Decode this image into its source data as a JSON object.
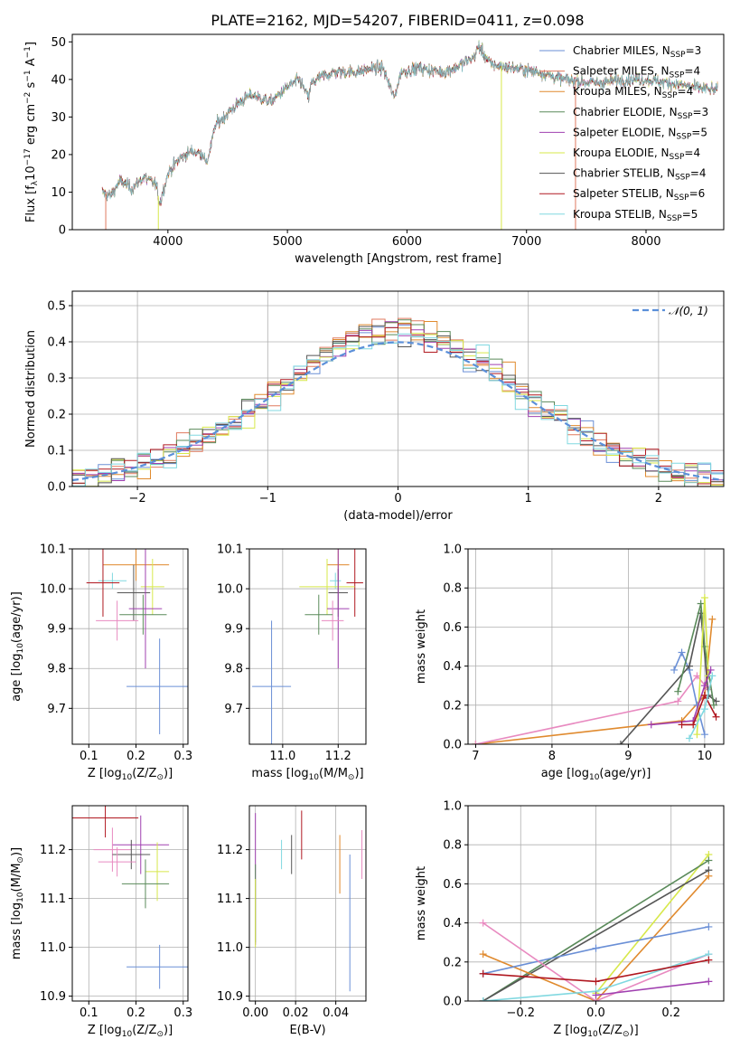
{
  "colors": {
    "chabrier_miles": "#6a8fd6",
    "salpeter_miles": "#e07a5f",
    "kroupa_miles": "#e08a2e",
    "chabrier_elodie": "#5a8a5a",
    "salpeter_elodie": "#a040b0",
    "kroupa_elodie": "#d7e84a",
    "chabrier_stelib": "#555555",
    "salpeter_stelib": "#b01820",
    "kroupa_stelib": "#80d8e0",
    "normal": "#5b8fd9",
    "pink": "#e88ac0"
  },
  "chart_data": [
    {
      "id": "spectrum",
      "type": "line",
      "title": "PLATE=2162, MJD=54207, FIBERID=0411, z=0.098",
      "xlabel": "wavelength [Angstrom, rest frame]",
      "ylabel_parts": [
        "Flux [f",
        "λ",
        "10",
        "−17",
        " erg cm",
        "−2",
        " s",
        "−1",
        " A",
        "−1",
        "]"
      ],
      "xlim": [
        3200,
        8650
      ],
      "ylim": [
        0,
        52
      ],
      "xticks": [
        4000,
        5000,
        6000,
        7000,
        8000
      ],
      "yticks": [
        0,
        10,
        20,
        30,
        40,
        50
      ],
      "grid": false,
      "legend_position": "right",
      "spectrum_anchors": [
        [
          3450,
          10
        ],
        [
          3520,
          9
        ],
        [
          3600,
          13
        ],
        [
          3700,
          11
        ],
        [
          3800,
          14
        ],
        [
          3900,
          12
        ],
        [
          3933,
          7
        ],
        [
          4000,
          15
        ],
        [
          4100,
          19
        ],
        [
          4200,
          21
        ],
        [
          4300,
          20
        ],
        [
          4320,
          17
        ],
        [
          4400,
          28
        ],
        [
          4500,
          31
        ],
        [
          4600,
          34
        ],
        [
          4700,
          36
        ],
        [
          4861,
          34
        ],
        [
          5000,
          38
        ],
        [
          5100,
          40
        ],
        [
          5175,
          35
        ],
        [
          5200,
          39
        ],
        [
          5300,
          41
        ],
        [
          5400,
          42
        ],
        [
          5500,
          42
        ],
        [
          5600,
          42
        ],
        [
          5700,
          43
        ],
        [
          5800,
          43
        ],
        [
          5893,
          35
        ],
        [
          5950,
          42
        ],
        [
          6100,
          43
        ],
        [
          6300,
          42
        ],
        [
          6400,
          43
        ],
        [
          6563,
          46
        ],
        [
          6600,
          49
        ],
        [
          6700,
          44
        ],
        [
          6900,
          43
        ],
        [
          7100,
          42
        ],
        [
          7300,
          40
        ],
        [
          7600,
          39
        ],
        [
          7800,
          40
        ],
        [
          8000,
          40
        ],
        [
          8200,
          39
        ],
        [
          8600,
          37
        ]
      ],
      "drops": [
        {
          "x": 3920,
          "series": "kroupa_elodie"
        },
        {
          "x": 3480,
          "series": "salpeter_miles"
        },
        {
          "x": 6790,
          "series": "kroupa_elodie"
        },
        {
          "x": 7410,
          "series": "salpeter_miles"
        }
      ],
      "legend": [
        {
          "base": "Chabrier MILES, N",
          "sub": "SSP",
          "tail": "=3",
          "color": "chabrier_miles"
        },
        {
          "base": "Salpeter MILES, N",
          "sub": "SSP",
          "tail": "=4",
          "color": "salpeter_miles"
        },
        {
          "base": "Kroupa MILES, N",
          "sub": "SSP",
          "tail": "=4",
          "color": "kroupa_miles"
        },
        {
          "base": "Chabrier ELODIE, N",
          "sub": "SSP",
          "tail": "=3",
          "color": "chabrier_elodie"
        },
        {
          "base": "Salpeter ELODIE, N",
          "sub": "SSP",
          "tail": "=5",
          "color": "salpeter_elodie"
        },
        {
          "base": "Kroupa ELODIE, N",
          "sub": "SSP",
          "tail": "=4",
          "color": "kroupa_elodie"
        },
        {
          "base": "Chabrier STELIB, N",
          "sub": "SSP",
          "tail": "=4",
          "color": "chabrier_stelib"
        },
        {
          "base": "Salpeter STELIB, N",
          "sub": "SSP",
          "tail": "=6",
          "color": "salpeter_stelib"
        },
        {
          "base": "Kroupa STELIB, N",
          "sub": "SSP",
          "tail": "=5",
          "color": "kroupa_stelib"
        }
      ]
    },
    {
      "id": "residuals",
      "type": "histogram",
      "xlabel": "(data-model)/error",
      "ylabel": "Normed distribution",
      "xlim": [
        -2.5,
        2.5
      ],
      "ylim": [
        0,
        0.54
      ],
      "xticks": [
        -2,
        -1,
        0,
        1,
        2
      ],
      "yticks": [
        0.0,
        0.1,
        0.2,
        0.3,
        0.4,
        0.5
      ],
      "grid": true,
      "bin_width": 0.1,
      "legend_position": "top-right",
      "legend_label": "𝒩(0, 1)",
      "normal_color": "normal"
    },
    {
      "id": "age_vs_Z",
      "type": "scatter",
      "xlabel_parts": [
        "Z [log",
        "10",
        "(Z/Z",
        "⊙",
        ")]"
      ],
      "ylabel_parts": [
        "age  [log",
        "10",
        "(age/yr)]"
      ],
      "xlim": [
        0.065,
        0.31
      ],
      "ylim": [
        9.61,
        10.1
      ],
      "xticks": [
        0.1,
        0.2,
        0.3
      ],
      "yticks": [
        9.7,
        9.8,
        9.9,
        10.0,
        10.1
      ],
      "grid": true,
      "points": [
        {
          "x": 0.15,
          "y": 10.02,
          "xerr": 0.03,
          "yerr": 0.02,
          "color": "kroupa_stelib"
        },
        {
          "x": 0.2,
          "y": 10.06,
          "xerr": 0.07,
          "yerr": 0.04,
          "color": "kroupa_miles"
        },
        {
          "x": 0.13,
          "y": 10.015,
          "xerr": 0.035,
          "yerr": 0.085,
          "color": "salpeter_stelib"
        },
        {
          "x": 0.235,
          "y": 10.005,
          "xerr": 0.025,
          "yerr": 0.07,
          "color": "kroupa_elodie"
        },
        {
          "x": 0.195,
          "y": 9.99,
          "xerr": 0.035,
          "yerr": 0.07,
          "color": "chabrier_stelib"
        },
        {
          "x": 0.22,
          "y": 9.95,
          "xerr": 0.035,
          "yerr": 0.15,
          "color": "salpeter_elodie"
        },
        {
          "x": 0.16,
          "y": 9.92,
          "xerr": 0.045,
          "yerr": 0.05,
          "color": "pink"
        },
        {
          "x": 0.215,
          "y": 9.935,
          "xerr": 0.05,
          "yerr": 0.05,
          "color": "chabrier_elodie"
        },
        {
          "x": 0.25,
          "y": 9.755,
          "xerr": 0.07,
          "yerr": 0.12,
          "color": "chabrier_miles"
        }
      ]
    },
    {
      "id": "age_vs_mass",
      "type": "scatter",
      "xlabel_parts": [
        "mass [log",
        "10",
        "(M/M",
        "⊙",
        ")]"
      ],
      "xlim": [
        10.88,
        11.3
      ],
      "ylim": [
        9.61,
        10.1
      ],
      "xticks": [
        11.0,
        11.2
      ],
      "yticks": [
        9.7,
        9.8,
        9.9,
        10.0,
        10.1
      ],
      "grid": true,
      "points": [
        {
          "x": 11.2,
          "y": 10.06,
          "xerr": 0.04,
          "yerr": 0.04,
          "color": "kroupa_miles"
        },
        {
          "x": 11.19,
          "y": 10.02,
          "xerr": 0.02,
          "yerr": 0.02,
          "color": "kroupa_stelib"
        },
        {
          "x": 11.26,
          "y": 10.015,
          "xerr": 0.03,
          "yerr": 0.085,
          "color": "salpeter_stelib"
        },
        {
          "x": 11.16,
          "y": 10.005,
          "xerr": 0.1,
          "yerr": 0.07,
          "color": "kroupa_elodie"
        },
        {
          "x": 11.2,
          "y": 9.99,
          "xerr": 0.035,
          "yerr": 0.06,
          "color": "chabrier_stelib"
        },
        {
          "x": 11.2,
          "y": 9.95,
          "xerr": 0.04,
          "yerr": 0.15,
          "color": "salpeter_elodie"
        },
        {
          "x": 11.18,
          "y": 9.92,
          "xerr": 0.04,
          "yerr": 0.05,
          "color": "pink"
        },
        {
          "x": 11.13,
          "y": 9.935,
          "xerr": 0.05,
          "yerr": 0.05,
          "color": "chabrier_elodie"
        },
        {
          "x": 10.96,
          "y": 9.755,
          "xerr": 0.07,
          "yerr": 0.165,
          "color": "chabrier_miles"
        }
      ]
    },
    {
      "id": "weight_vs_age",
      "type": "line",
      "xlabel_parts": [
        "age  [log",
        "10",
        "(age/yr)]"
      ],
      "ylabel": "mass weight",
      "xlim": [
        6.9,
        10.25
      ],
      "ylim": [
        0,
        1.0
      ],
      "xticks": [
        7,
        8,
        9,
        10
      ],
      "yticks": [
        0.0,
        0.2,
        0.4,
        0.6,
        0.8,
        1.0
      ],
      "grid": true,
      "series": [
        {
          "color": "kroupa_miles",
          "x": [
            7.0,
            9.7,
            10.0,
            10.1
          ],
          "y": [
            0.0,
            0.12,
            0.25,
            0.64
          ]
        },
        {
          "color": "pink",
          "x": [
            7.0,
            9.65,
            9.9,
            10.05
          ],
          "y": [
            0.0,
            0.22,
            0.35,
            0.28
          ]
        },
        {
          "color": "chabrier_miles",
          "x": [
            9.6,
            9.7,
            9.8,
            9.9,
            10.0
          ],
          "y": [
            0.38,
            0.47,
            0.38,
            0.2,
            0.05
          ]
        },
        {
          "color": "chabrier_stelib",
          "x": [
            8.9,
            9.8,
            9.95,
            10.05,
            10.15
          ],
          "y": [
            0.0,
            0.4,
            0.67,
            0.25,
            0.22
          ]
        },
        {
          "color": "chabrier_elodie",
          "x": [
            9.65,
            9.95,
            10.0,
            10.12
          ],
          "y": [
            0.27,
            0.72,
            0.5,
            0.2
          ]
        },
        {
          "color": "kroupa_elodie",
          "x": [
            9.9,
            10.0,
            10.05
          ],
          "y": [
            0.05,
            0.75,
            0.35
          ]
        },
        {
          "color": "salpeter_elodie",
          "x": [
            9.3,
            9.85,
            10.0,
            10.08
          ],
          "y": [
            0.1,
            0.12,
            0.3,
            0.38
          ]
        },
        {
          "color": "salpeter_stelib",
          "x": [
            9.7,
            9.85,
            10.0,
            10.15
          ],
          "y": [
            0.1,
            0.1,
            0.25,
            0.14
          ]
        },
        {
          "color": "kroupa_stelib",
          "x": [
            9.8,
            10.0,
            10.1
          ],
          "y": [
            0.03,
            0.18,
            0.35
          ]
        }
      ]
    },
    {
      "id": "mass_vs_Z",
      "type": "scatter",
      "xlabel_parts": [
        "Z [log",
        "10",
        "(Z/Z",
        "⊙",
        ")]"
      ],
      "ylabel_parts": [
        "mass [log",
        "10",
        "(M/M",
        "⊙",
        ")]"
      ],
      "xlim": [
        0.065,
        0.31
      ],
      "ylim": [
        10.89,
        11.29
      ],
      "xticks": [
        0.1,
        0.2,
        0.3
      ],
      "yticks": [
        10.9,
        11.0,
        11.1,
        11.2
      ],
      "grid": true,
      "points": [
        {
          "x": 0.135,
          "y": 11.265,
          "xerr": 0.07,
          "yerr": 0.04,
          "color": "salpeter_stelib"
        },
        {
          "x": 0.21,
          "y": 11.21,
          "xerr": 0.06,
          "yerr": 0.06,
          "color": "salpeter_elodie"
        },
        {
          "x": 0.15,
          "y": 11.2,
          "xerr": 0.04,
          "yerr": 0.045,
          "color": "pink"
        },
        {
          "x": 0.19,
          "y": 11.19,
          "xerr": 0.04,
          "yerr": 0.03,
          "color": "chabrier_stelib"
        },
        {
          "x": 0.16,
          "y": 11.175,
          "xerr": 0.04,
          "yerr": 0.03,
          "color": "pink"
        },
        {
          "x": 0.245,
          "y": 11.155,
          "xerr": 0.025,
          "yerr": 0.06,
          "color": "kroupa_elodie"
        },
        {
          "x": 0.22,
          "y": 11.13,
          "xerr": 0.05,
          "yerr": 0.05,
          "color": "chabrier_elodie"
        },
        {
          "x": 0.25,
          "y": 10.96,
          "xerr": 0.07,
          "yerr": 0.045,
          "color": "chabrier_miles"
        }
      ]
    },
    {
      "id": "mass_vs_ebv",
      "type": "scatter",
      "xlabel": "E(B-V)",
      "xlim": [
        -0.003,
        0.055
      ],
      "ylim": [
        10.89,
        11.29
      ],
      "xticks": [
        0.0,
        0.02,
        0.04
      ],
      "yticks": [
        10.9,
        11.0,
        11.1,
        11.2
      ],
      "grid": true,
      "points": [
        {
          "x": 0.0,
          "y": 11.14,
          "xerr": 0,
          "yerr": 0.135,
          "color": "salpeter_elodie"
        },
        {
          "x": 0.0,
          "y": 11.09,
          "xerr": 0,
          "yerr": 0.08,
          "color": "chabrier_elodie"
        },
        {
          "x": 0.0,
          "y": 11.07,
          "xerr": 0,
          "yerr": 0.07,
          "color": "kroupa_elodie"
        },
        {
          "x": 0.013,
          "y": 11.19,
          "xerr": 0,
          "yerr": 0.03,
          "color": "kroupa_stelib"
        },
        {
          "x": 0.018,
          "y": 11.19,
          "xerr": 0,
          "yerr": 0.04,
          "color": "chabrier_stelib"
        },
        {
          "x": 0.023,
          "y": 11.23,
          "xerr": 0,
          "yerr": 0.05,
          "color": "salpeter_stelib"
        },
        {
          "x": 0.042,
          "y": 11.17,
          "xerr": 0,
          "yerr": 0.06,
          "color": "kroupa_miles"
        },
        {
          "x": 0.047,
          "y": 11.05,
          "xerr": 0,
          "yerr": 0.14,
          "color": "chabrier_miles"
        },
        {
          "x": 0.053,
          "y": 11.19,
          "xerr": 0,
          "yerr": 0.05,
          "color": "pink"
        }
      ]
    },
    {
      "id": "weight_vs_Z",
      "type": "line",
      "xlabel_parts": [
        "Z [log",
        "10",
        "(Z/Z",
        "⊙",
        ")]"
      ],
      "ylabel": "mass weight",
      "xlim": [
        -0.34,
        0.34
      ],
      "ylim": [
        0,
        1.0
      ],
      "xticks": [
        -0.2,
        0.0,
        0.2
      ],
      "xtick_labels": [
        "−0.2",
        "0.0",
        "0.2"
      ],
      "yticks": [
        0.0,
        0.2,
        0.4,
        0.6,
        0.8,
        1.0
      ],
      "grid": true,
      "series": [
        {
          "color": "kroupa_elodie",
          "x": [
            0.0,
            0.3
          ],
          "y": [
            0.04,
            0.75
          ]
        },
        {
          "color": "chabrier_elodie",
          "x": [
            -0.3,
            0.3
          ],
          "y": [
            0.0,
            0.72
          ]
        },
        {
          "color": "chabrier_stelib",
          "x": [
            -0.3,
            0.3
          ],
          "y": [
            0.0,
            0.67
          ]
        },
        {
          "color": "kroupa_miles",
          "x": [
            -0.3,
            0.0,
            0.3
          ],
          "y": [
            0.24,
            0.0,
            0.64
          ]
        },
        {
          "color": "chabrier_miles",
          "x": [
            -0.3,
            0.0,
            0.3
          ],
          "y": [
            0.14,
            0.27,
            0.38
          ]
        },
        {
          "color": "pink",
          "x": [
            -0.3,
            0.0,
            0.3
          ],
          "y": [
            0.4,
            0.0,
            0.24
          ]
        },
        {
          "color": "kroupa_stelib",
          "x": [
            -0.3,
            0.0,
            0.3
          ],
          "y": [
            0.0,
            0.05,
            0.24
          ]
        },
        {
          "color": "salpeter_stelib",
          "x": [
            -0.3,
            0.0,
            0.3
          ],
          "y": [
            0.14,
            0.1,
            0.21
          ]
        },
        {
          "color": "salpeter_elodie",
          "x": [
            0.0,
            0.3
          ],
          "y": [
            0.03,
            0.1
          ]
        }
      ]
    }
  ]
}
